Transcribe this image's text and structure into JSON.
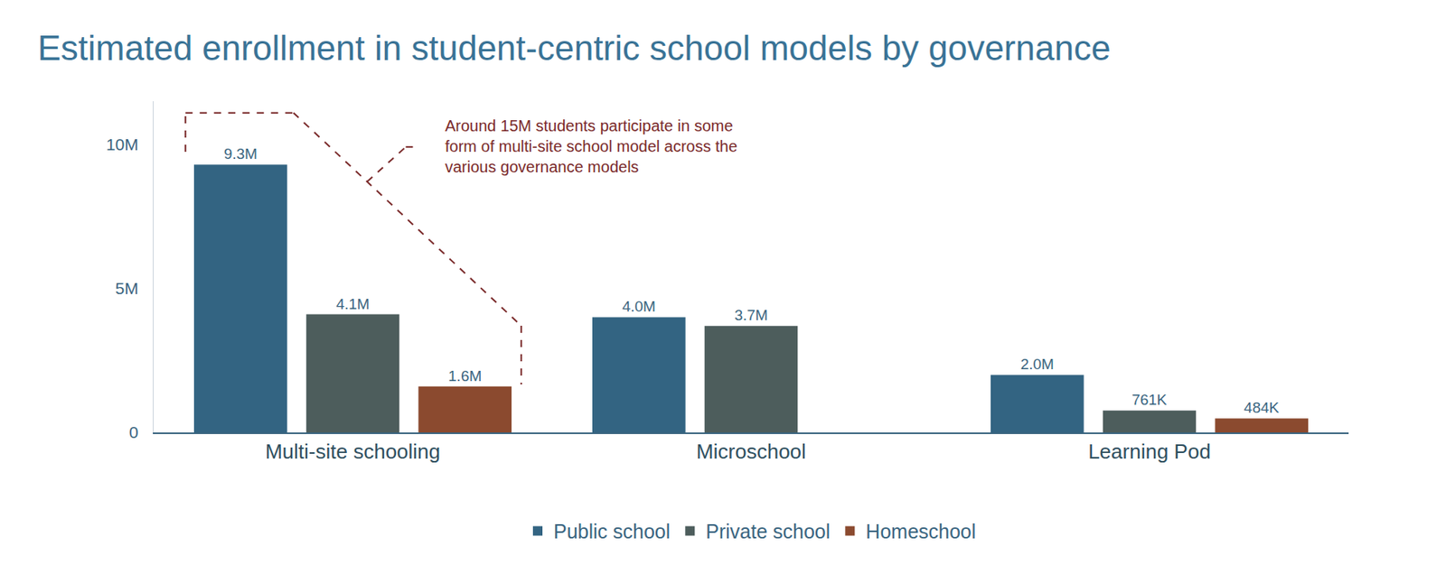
{
  "chart_data": {
    "type": "bar",
    "title": "Estimated enrollment in student-centric school models by governance",
    "categories": [
      "Multi-site schooling",
      "Microschool",
      "Learning Pod"
    ],
    "series": [
      {
        "name": "Public school",
        "color": "#336482",
        "values": [
          9300000,
          4000000,
          2000000
        ],
        "value_labels": [
          "9.3M",
          "4.0M",
          "2.0M"
        ]
      },
      {
        "name": "Private school",
        "color": "#4d5d5c",
        "values": [
          4100000,
          3700000,
          761000
        ],
        "value_labels": [
          "4.1M",
          "3.7M",
          "761K"
        ]
      },
      {
        "name": "Homeschool",
        "color": "#8b4a2f",
        "values": [
          1600000,
          null,
          484000
        ],
        "value_labels": [
          "1.6M",
          null,
          "484K"
        ]
      }
    ],
    "ylim": [
      0,
      11500000
    ],
    "yticks": [
      0,
      {
        "value": 5000000,
        "label": "5M"
      },
      {
        "value": 10000000,
        "label": "10M"
      }
    ],
    "grid": false,
    "data_labels": true,
    "legend": "bottom",
    "annotation": "Around 15M students participate in some form of multi-site school model across the various governance models"
  }
}
